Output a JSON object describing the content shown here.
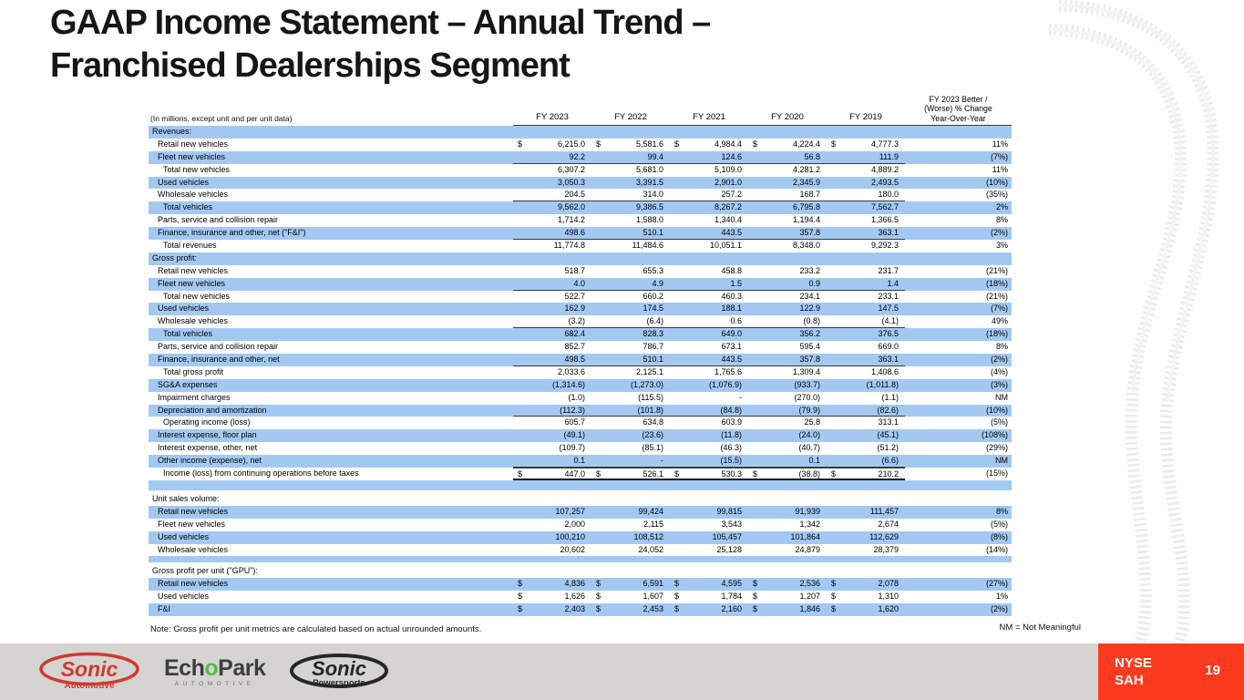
{
  "slide": {
    "title_line1": "GAAP Income Statement – Annual Trend –",
    "title_line2": "Franchised Dealerships Segment",
    "note": "Note: Gross profit per unit metrics are calculated based on actual unrounded amounts.",
    "nm_note": "NM = Not Meaningful",
    "page_number": "19",
    "ticker_line1": "NYSE",
    "ticker_line2": "SAH"
  },
  "logos": {
    "sonic_automotive": {
      "name": "Sonic",
      "sub": "Automotive"
    },
    "echopark": {
      "part1": "Ech",
      "part2": "o",
      "part3": "Park",
      "sub": "AUTOMOTIVE"
    },
    "sonic_powersports": {
      "name": "Sonic",
      "sub": "Powersports"
    }
  },
  "colors": {
    "row_highlight": "#a3c9f3",
    "badge_red": "#fc3b1e",
    "sonic_red": "#cf3a2e",
    "echopark_green": "#56b948",
    "footer_gray": "#d6d4d2"
  },
  "table": {
    "caption": "(In millions, except unit and per unit data)",
    "year_headers": [
      "FY 2023",
      "FY 2022",
      "FY 2021",
      "FY 2020",
      "FY 2019"
    ],
    "change_header": [
      "FY 2023 Better /",
      "(Worse) % Change",
      "Year-Over-Year"
    ],
    "rows": [
      {
        "type": "section",
        "label": "Revenues:",
        "shade": true
      },
      {
        "type": "item",
        "label": "Retail new vehicles",
        "indent": 1,
        "shade": false,
        "dollar": true,
        "values": [
          "6,215.0",
          "5,581.6",
          "4,984.4",
          "4,224.4",
          "4,777.3"
        ],
        "change": "11%"
      },
      {
        "type": "item",
        "label": "Fleet new vehicles",
        "indent": 1,
        "shade": true,
        "values": [
          "92.2",
          "99.4",
          "124.6",
          "56.8",
          "111.9"
        ],
        "change": "(7%)",
        "rule": "under"
      },
      {
        "type": "item",
        "label": "Total new vehicles",
        "indent": 2,
        "shade": false,
        "values": [
          "6,307.2",
          "5,681.0",
          "5,109.0",
          "4,281.2",
          "4,889.2"
        ],
        "change": "11%"
      },
      {
        "type": "item",
        "label": "Used vehicles",
        "indent": 1,
        "shade": true,
        "values": [
          "3,050.3",
          "3,391.5",
          "2,901.0",
          "2,345.9",
          "2,493.5"
        ],
        "change": "(10%)"
      },
      {
        "type": "item",
        "label": "Wholesale vehicles",
        "indent": 1,
        "shade": false,
        "values": [
          "204.5",
          "314.0",
          "257.2",
          "168.7",
          "180.0"
        ],
        "change": "(35%)",
        "rule": "under"
      },
      {
        "type": "item",
        "label": "Total vehicles",
        "indent": 2,
        "shade": true,
        "values": [
          "9,562.0",
          "9,386.5",
          "8,267.2",
          "6,795.8",
          "7,562.7"
        ],
        "change": "2%"
      },
      {
        "type": "item",
        "label": "Parts, service and collision repair",
        "indent": 1,
        "shade": false,
        "values": [
          "1,714.2",
          "1,588.0",
          "1,340.4",
          "1,194.4",
          "1,366.5"
        ],
        "change": "8%"
      },
      {
        "type": "item",
        "label": "Finance, insurance and other, net (\"F&I\")",
        "indent": 1,
        "shade": true,
        "values": [
          "498.6",
          "510.1",
          "443.5",
          "357.8",
          "363.1"
        ],
        "change": "(2%)",
        "rule": "under"
      },
      {
        "type": "item",
        "label": "Total revenues",
        "indent": 2,
        "shade": false,
        "values": [
          "11,774.8",
          "11,484.6",
          "10,051.1",
          "8,348.0",
          "9,292.3"
        ],
        "change": "3%"
      },
      {
        "type": "section",
        "label": "Gross profit:",
        "shade": true
      },
      {
        "type": "item",
        "label": "Retail new vehicles",
        "indent": 1,
        "shade": false,
        "values": [
          "518.7",
          "655.3",
          "458.8",
          "233.2",
          "231.7"
        ],
        "change": "(21%)"
      },
      {
        "type": "item",
        "label": "Fleet new vehicles",
        "indent": 1,
        "shade": true,
        "values": [
          "4.0",
          "4.9",
          "1.5",
          "0.9",
          "1.4"
        ],
        "change": "(18%)",
        "rule": "under"
      },
      {
        "type": "item",
        "label": "Total new vehicles",
        "indent": 2,
        "shade": false,
        "values": [
          "522.7",
          "660.2",
          "460.3",
          "234.1",
          "233.1"
        ],
        "change": "(21%)"
      },
      {
        "type": "item",
        "label": "Used vehicles",
        "indent": 1,
        "shade": true,
        "values": [
          "162.9",
          "174.5",
          "188.1",
          "122.9",
          "147.5"
        ],
        "change": "(7%)"
      },
      {
        "type": "item",
        "label": "Wholesale vehicles",
        "indent": 1,
        "shade": false,
        "values": [
          "(3.2)",
          "(6.4)",
          "0.6",
          "(0.8)",
          "(4.1)"
        ],
        "change": "49%",
        "rule": "under"
      },
      {
        "type": "item",
        "label": "Total vehicles",
        "indent": 2,
        "shade": true,
        "values": [
          "682.4",
          "828.3",
          "649.0",
          "356.2",
          "376.5"
        ],
        "change": "(18%)"
      },
      {
        "type": "item",
        "label": "Parts, service and collision repair",
        "indent": 1,
        "shade": false,
        "values": [
          "852.7",
          "786.7",
          "673.1",
          "595.4",
          "669.0"
        ],
        "change": "8%"
      },
      {
        "type": "item",
        "label": "Finance, insurance and other, net",
        "indent": 1,
        "shade": true,
        "values": [
          "498.5",
          "510.1",
          "443.5",
          "357.8",
          "363.1"
        ],
        "change": "(2%)",
        "rule": "under"
      },
      {
        "type": "item",
        "label": "Total gross profit",
        "indent": 2,
        "shade": false,
        "values": [
          "2,033.6",
          "2,125.1",
          "1,765.6",
          "1,309.4",
          "1,408.6"
        ],
        "change": "(4%)"
      },
      {
        "type": "item",
        "label": "SG&A expenses",
        "indent": 1,
        "shade": true,
        "values": [
          "(1,314.6)",
          "(1,273.0)",
          "(1,076.9)",
          "(933.7)",
          "(1,011.8)"
        ],
        "change": "(3%)"
      },
      {
        "type": "item",
        "label": "Impairment charges",
        "indent": 1,
        "shade": false,
        "values": [
          "(1.0)",
          "(115.5)",
          "-",
          "(270.0)",
          "(1.1)"
        ],
        "change": "NM"
      },
      {
        "type": "item",
        "label": "Depreciation and amortization",
        "indent": 1,
        "shade": true,
        "values": [
          "(112.3)",
          "(101.8)",
          "(84.8)",
          "(79.9)",
          "(82.6)"
        ],
        "change": "(10%)",
        "rule": "under"
      },
      {
        "type": "item",
        "label": "Operating income (loss)",
        "indent": 2,
        "shade": false,
        "values": [
          "605.7",
          "634.8",
          "603.9",
          "25.8",
          "313.1"
        ],
        "change": "(5%)"
      },
      {
        "type": "item",
        "label": "Interest expense, floor plan",
        "indent": 1,
        "shade": true,
        "values": [
          "(49.1)",
          "(23.6)",
          "(11.8)",
          "(24.0)",
          "(45.1)"
        ],
        "change": "(108%)"
      },
      {
        "type": "item",
        "label": "Interest expense, other, net",
        "indent": 1,
        "shade": false,
        "values": [
          "(109.7)",
          "(85.1)",
          "(46.3)",
          "(40.7)",
          "(51.2)"
        ],
        "change": "(29%)"
      },
      {
        "type": "item",
        "label": "Other income (expense), net",
        "indent": 1,
        "shade": true,
        "values": [
          "0.1",
          "-",
          "(15.5)",
          "0.1",
          "(6.6)"
        ],
        "change": "NM",
        "rule": "under"
      },
      {
        "type": "item",
        "label": "Income (loss) from continuing operations before taxes",
        "indent": 2,
        "shade": false,
        "dollar": true,
        "values": [
          "447.0",
          "526.1",
          "530.3",
          "(38.8)",
          "210.2"
        ],
        "change": "(15%)",
        "rule": "total"
      },
      {
        "type": "spacer",
        "shade": true,
        "height": 11
      },
      {
        "type": "spacer",
        "shade": false,
        "height": 3
      },
      {
        "type": "section",
        "label": "Unit sales volume:",
        "shade": false
      },
      {
        "type": "item",
        "label": "Retail new vehicles",
        "indent": 1,
        "shade": true,
        "values": [
          "107,257",
          "99,424",
          "99,815",
          "91,939",
          "111,457"
        ],
        "change": "8%"
      },
      {
        "type": "item",
        "label": "Fleet new vehicles",
        "indent": 1,
        "shade": false,
        "values": [
          "2,000",
          "2,115",
          "3,543",
          "1,342",
          "2,674"
        ],
        "change": "(5%)"
      },
      {
        "type": "item",
        "label": "Used vehicles",
        "indent": 1,
        "shade": true,
        "values": [
          "100,210",
          "108,512",
          "105,457",
          "101,864",
          "112,629"
        ],
        "change": "(8%)"
      },
      {
        "type": "item",
        "label": "Wholesale vehicles",
        "indent": 1,
        "shade": false,
        "values": [
          "20,602",
          "24,052",
          "25,128",
          "24,879",
          "28,379"
        ],
        "change": "(14%)"
      },
      {
        "type": "spacer",
        "shade": true,
        "height": 7
      },
      {
        "type": "spacer",
        "shade": false,
        "height": 3
      },
      {
        "type": "section",
        "label": "Gross profit per unit (\"GPU\"):",
        "shade": false
      },
      {
        "type": "item",
        "label": "Retail new vehicles",
        "indent": 1,
        "shade": true,
        "dollar": true,
        "values": [
          "4,836",
          "6,591",
          "4,595",
          "2,536",
          "2,078"
        ],
        "change": "(27%)"
      },
      {
        "type": "item",
        "label": "Used vehicles",
        "indent": 1,
        "shade": false,
        "dollar": true,
        "values": [
          "1,626",
          "1,607",
          "1,784",
          "1,207",
          "1,310"
        ],
        "change": "1%"
      },
      {
        "type": "item",
        "label": "F&I",
        "indent": 1,
        "shade": true,
        "dollar": true,
        "values": [
          "2,403",
          "2,453",
          "2,160",
          "1,846",
          "1,620"
        ],
        "change": "(2%)"
      }
    ]
  }
}
